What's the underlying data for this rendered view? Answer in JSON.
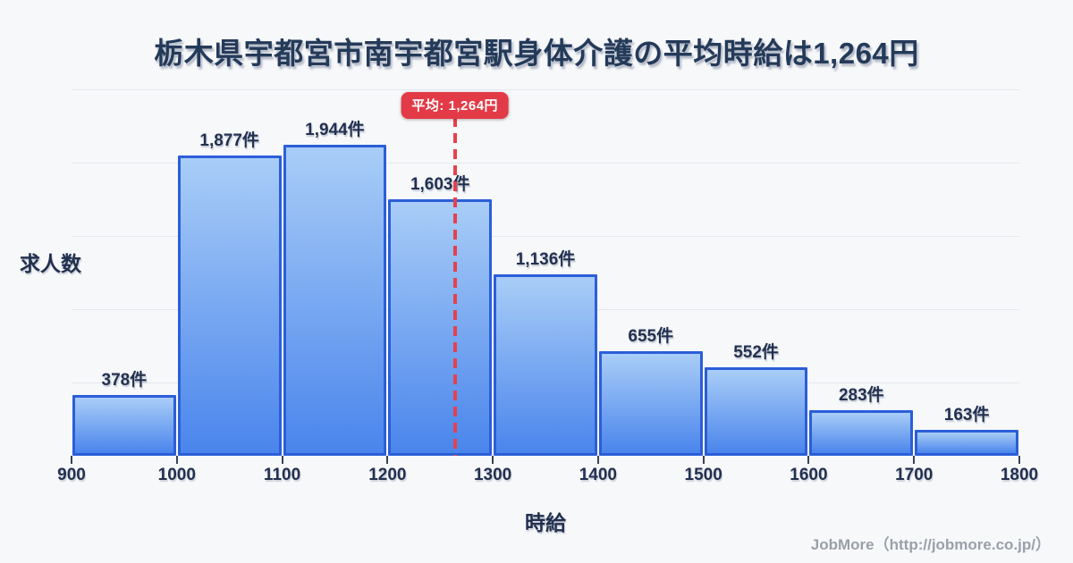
{
  "header": {
    "title": "栃木県宇都宮市南宇都宮駅身体介護の平均時給は1,264円"
  },
  "chart_data": {
    "type": "bar",
    "subtype": "histogram",
    "title": "栃木県宇都宮市南宇都宮駅身体介護の平均時給は1,264円",
    "xlabel": "時給",
    "ylabel": "求人数",
    "unit": "件",
    "bin_edges": [
      900,
      1000,
      1100,
      1200,
      1300,
      1400,
      1500,
      1600,
      1700,
      1800
    ],
    "x_tick_labels": [
      "900",
      "1000",
      "1100",
      "1200",
      "1300",
      "1400",
      "1500",
      "1600",
      "1700",
      "1800"
    ],
    "values": [
      378,
      1877,
      1944,
      1603,
      1136,
      655,
      552,
      283,
      163
    ],
    "value_labels": [
      "378件",
      "1,877件",
      "1,944件",
      "1,603件",
      "1,136件",
      "655件",
      "552件",
      "283件",
      "163件"
    ],
    "average": {
      "value": 1264,
      "label": "平均: 1,264円"
    },
    "xlim": [
      900,
      1800
    ],
    "ylim": [
      0,
      2290
    ],
    "grid": "horizontal-only",
    "legend": "none",
    "colors": {
      "bar_top": "#a9cdf7",
      "bar_bottom": "#4a85ec",
      "bar_border": "#2b5ed8",
      "average_line": "#e8404c",
      "badge_bg": "#e23b47",
      "badge_text": "#ffffff",
      "text": "#22304f",
      "grid": "#e4e7ee",
      "footer_text": "#9aa0aa",
      "background": "#f7f8fa"
    }
  },
  "footer": {
    "credit": "JobMore（http://jobmore.co.jp/）"
  }
}
